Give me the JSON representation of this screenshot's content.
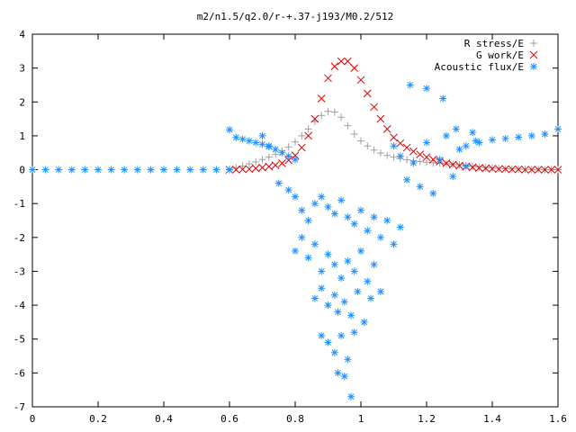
{
  "chart_data": {
    "type": "scatter",
    "title": "m2/n1.5/q2.0/r-+.37-j193/M0.2/512",
    "xlabel": "",
    "ylabel": "",
    "xlim": [
      0,
      1.6
    ],
    "ylim": [
      -7,
      4
    ],
    "x_ticks": [
      "0",
      "0.2",
      "0.4",
      "0.6",
      "0.8",
      "1",
      "1.2",
      "1.4",
      "1.6"
    ],
    "y_ticks": [
      "4",
      "3",
      "2",
      "1",
      "0",
      "-1",
      "-2",
      "-3",
      "-4",
      "-5",
      "-6",
      "-7"
    ],
    "grid": false,
    "legend_position": "top-right",
    "series": [
      {
        "name": "R stress/E",
        "marker": "plus",
        "color": "#a0a0a0",
        "x": [
          0.6,
          0.62,
          0.64,
          0.66,
          0.68,
          0.7,
          0.72,
          0.74,
          0.76,
          0.78,
          0.8,
          0.82,
          0.84,
          0.86,
          0.88,
          0.9,
          0.92,
          0.94,
          0.96,
          0.98,
          1.0,
          1.02,
          1.04,
          1.06,
          1.08,
          1.1,
          1.12,
          1.14,
          1.16,
          1.18,
          1.2,
          1.22,
          1.24,
          1.26,
          1.28,
          1.3,
          1.32,
          1.34,
          1.36,
          1.38,
          1.4,
          1.42,
          1.44,
          1.46,
          1.48,
          1.5,
          1.52,
          1.54,
          1.56,
          1.58,
          1.6
        ],
        "y": [
          0.02,
          0.06,
          0.11,
          0.17,
          0.23,
          0.3,
          0.37,
          0.45,
          0.55,
          0.67,
          0.82,
          1.0,
          1.2,
          1.42,
          1.6,
          1.72,
          1.7,
          1.55,
          1.3,
          1.05,
          0.85,
          0.7,
          0.58,
          0.49,
          0.42,
          0.37,
          0.33,
          0.29,
          0.26,
          0.24,
          0.22,
          0.2,
          0.19,
          0.18,
          0.16,
          0.14,
          0.12,
          0.1,
          0.08,
          0.06,
          0.05,
          0.04,
          0.03,
          0.02,
          0.02,
          0.01,
          0.01,
          0.01,
          0.0,
          0.0,
          0.0
        ]
      },
      {
        "name": "G work/E",
        "marker": "cross",
        "color": "#e00000",
        "x": [
          0.6,
          0.62,
          0.64,
          0.66,
          0.68,
          0.7,
          0.72,
          0.74,
          0.76,
          0.78,
          0.8,
          0.82,
          0.84,
          0.86,
          0.88,
          0.9,
          0.92,
          0.94,
          0.96,
          0.98,
          1.0,
          1.02,
          1.04,
          1.06,
          1.08,
          1.1,
          1.12,
          1.14,
          1.16,
          1.18,
          1.2,
          1.22,
          1.24,
          1.26,
          1.28,
          1.3,
          1.32,
          1.34,
          1.36,
          1.38,
          1.4,
          1.42,
          1.44,
          1.46,
          1.48,
          1.5,
          1.52,
          1.54,
          1.56,
          1.58,
          1.6
        ],
        "y": [
          0.0,
          0.0,
          0.01,
          0.02,
          0.04,
          0.06,
          0.09,
          0.13,
          0.19,
          0.28,
          0.42,
          0.65,
          1.0,
          1.5,
          2.1,
          2.7,
          3.05,
          3.2,
          3.2,
          3.0,
          2.65,
          2.25,
          1.85,
          1.5,
          1.2,
          0.95,
          0.78,
          0.65,
          0.54,
          0.45,
          0.37,
          0.3,
          0.24,
          0.19,
          0.15,
          0.12,
          0.09,
          0.07,
          0.05,
          0.04,
          0.03,
          0.02,
          0.02,
          0.01,
          0.01,
          0.0,
          0.0,
          0.0,
          0.0,
          0.0,
          0.0
        ]
      },
      {
        "name": "Acoustic flux/E",
        "marker": "star",
        "color": "#1e90ff",
        "x": [
          0.0,
          0.04,
          0.08,
          0.12,
          0.16,
          0.2,
          0.24,
          0.28,
          0.32,
          0.36,
          0.4,
          0.44,
          0.48,
          0.52,
          0.56,
          0.6,
          0.6,
          0.62,
          0.64,
          0.66,
          0.68,
          0.7,
          0.72,
          0.74,
          0.76,
          0.78,
          0.8,
          0.7,
          0.72,
          0.75,
          0.78,
          0.8,
          0.82,
          0.84,
          0.86,
          0.88,
          0.9,
          0.92,
          0.94,
          0.96,
          0.98,
          1.0,
          1.02,
          1.04,
          1.06,
          1.08,
          1.1,
          1.12,
          0.8,
          0.82,
          0.84,
          0.86,
          0.88,
          0.9,
          0.92,
          0.94,
          0.96,
          0.98,
          1.0,
          1.02,
          1.04,
          1.06,
          0.86,
          0.88,
          0.9,
          0.92,
          0.93,
          0.95,
          0.97,
          0.99,
          1.01,
          1.03,
          0.88,
          0.9,
          0.92,
          0.94,
          0.96,
          0.98,
          0.93,
          0.95,
          0.97,
          1.1,
          1.12,
          1.14,
          1.16,
          1.18,
          1.2,
          1.22,
          1.24,
          1.26,
          1.28,
          1.3,
          1.32,
          1.34,
          1.36,
          1.15,
          1.2,
          1.25,
          1.29,
          1.32,
          1.35,
          1.4,
          1.44,
          1.48,
          1.52,
          1.56,
          1.6
        ],
        "y": [
          0,
          0,
          0,
          0,
          0,
          0,
          0,
          0,
          0,
          0,
          0,
          0,
          0,
          0,
          0,
          0,
          1.18,
          0.95,
          0.9,
          0.85,
          0.8,
          0.75,
          0.68,
          0.6,
          0.5,
          0.4,
          0.3,
          1.0,
          0.7,
          -0.4,
          -0.6,
          -0.8,
          -1.2,
          -1.5,
          -1.0,
          -0.8,
          -1.1,
          -1.3,
          -0.9,
          -1.4,
          -1.6,
          -1.2,
          -1.8,
          -1.4,
          -2.0,
          -1.5,
          -2.2,
          -1.7,
          -2.4,
          -2.0,
          -2.6,
          -2.2,
          -3.0,
          -2.5,
          -2.8,
          -3.2,
          -2.7,
          -3.0,
          -2.4,
          -3.3,
          -2.8,
          -3.6,
          -3.8,
          -3.5,
          -4.0,
          -3.7,
          -4.2,
          -3.9,
          -4.3,
          -3.6,
          -4.5,
          -3.8,
          -4.9,
          -5.1,
          -5.4,
          -4.9,
          -5.6,
          -4.8,
          -6.0,
          -6.1,
          -6.7,
          0.7,
          0.4,
          -0.3,
          0.2,
          -0.5,
          0.8,
          -0.7,
          0.3,
          1.0,
          -0.2,
          0.6,
          0.1,
          1.1,
          0.8,
          2.5,
          2.4,
          2.1,
          1.2,
          0.7,
          0.85,
          0.88,
          0.92,
          0.96,
          1.0,
          1.05,
          1.2
        ]
      }
    ]
  }
}
